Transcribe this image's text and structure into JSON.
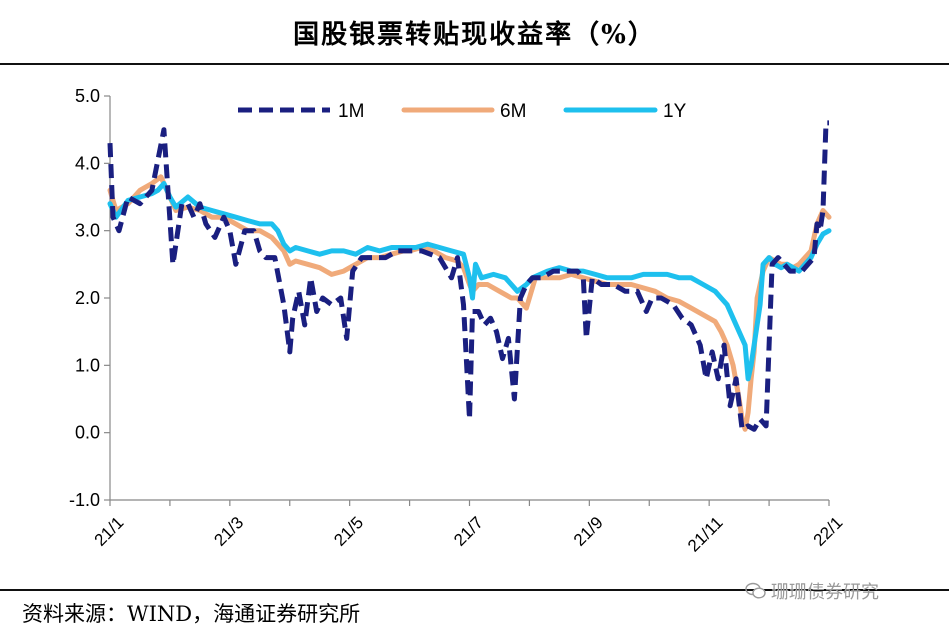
{
  "title": "国股银票转贴现收益率（%）",
  "source": "资料来源：WIND，海通证券研究所",
  "watermark": "珊珊债券研究",
  "colors": {
    "1M": "#1a1f80",
    "6M": "#f0aa7a",
    "1Y": "#1ec0ee",
    "axis": "#888888"
  },
  "chart_data": {
    "type": "line",
    "title": "国股银票转贴现收益率（%）",
    "xlabel": "",
    "ylabel": "",
    "ylim": [
      -1.0,
      5.0
    ],
    "yticks": [
      "5.0",
      "4.0",
      "3.0",
      "2.0",
      "1.0",
      "0.0",
      "-1.0"
    ],
    "ytick_values": [
      5,
      4,
      3,
      2,
      1,
      0,
      -1
    ],
    "xlim": [
      0,
      12
    ],
    "xticks": [
      "21/1",
      "21/3",
      "21/5",
      "21/7",
      "21/9",
      "21/11",
      "22/1"
    ],
    "xtick_values": [
      0,
      2,
      4,
      6,
      8,
      10,
      12
    ],
    "legend_position": "top-center",
    "series": [
      {
        "name": "1M",
        "style": "dashed",
        "x": [
          0,
          0.05,
          0.15,
          0.3,
          0.5,
          0.7,
          0.9,
          1.05,
          1.2,
          1.3,
          1.4,
          1.5,
          1.6,
          1.75,
          1.9,
          2.0,
          2.1,
          2.25,
          2.4,
          2.5,
          2.6,
          2.75,
          2.9,
          3.0,
          3.05,
          3.15,
          3.25,
          3.35,
          3.45,
          3.55,
          3.7,
          3.85,
          3.95,
          4.05,
          4.2,
          4.4,
          4.6,
          4.8,
          5.0,
          5.2,
          5.5,
          5.7,
          5.8,
          5.9,
          6.0,
          6.05,
          6.15,
          6.25,
          6.35,
          6.45,
          6.55,
          6.65,
          6.75,
          6.85,
          6.95,
          7.05,
          7.2,
          7.4,
          7.6,
          7.8,
          7.9,
          7.95,
          8.05,
          8.2,
          8.4,
          8.6,
          8.8,
          8.95,
          9.05,
          9.2,
          9.4,
          9.55,
          9.7,
          9.85,
          9.95,
          10.05,
          10.15,
          10.25,
          10.35,
          10.45,
          10.55,
          10.65,
          10.75,
          10.85,
          10.95,
          11.05,
          11.15,
          11.25,
          11.35,
          11.45,
          11.55,
          11.65,
          11.75,
          11.8,
          11.85,
          11.9,
          11.95,
          12.0
        ],
        "values": [
          4.3,
          3.2,
          3.0,
          3.5,
          3.4,
          3.6,
          4.5,
          2.5,
          3.4,
          3.4,
          3.2,
          3.4,
          3.1,
          2.9,
          3.2,
          3.0,
          2.5,
          3.0,
          3.0,
          2.7,
          2.6,
          2.6,
          1.9,
          1.2,
          1.7,
          2.1,
          1.6,
          2.3,
          1.8,
          2.0,
          1.9,
          2.0,
          1.4,
          2.4,
          2.6,
          2.6,
          2.6,
          2.7,
          2.7,
          2.7,
          2.6,
          2.3,
          2.6,
          1.9,
          0.2,
          1.8,
          1.8,
          1.6,
          1.7,
          1.5,
          1.1,
          1.4,
          0.5,
          2.0,
          2.2,
          2.3,
          2.3,
          2.4,
          2.4,
          2.4,
          2.3,
          1.4,
          2.3,
          2.2,
          2.2,
          2.1,
          2.1,
          1.8,
          2.0,
          2.0,
          1.9,
          1.7,
          1.6,
          1.3,
          0.8,
          1.2,
          0.8,
          1.3,
          0.4,
          0.8,
          0.05,
          0.1,
          0.05,
          0.2,
          0.1,
          2.5,
          2.6,
          2.5,
          2.4,
          2.4,
          2.4,
          2.5,
          2.6,
          3.1,
          3.0,
          3.3,
          4.6,
          4.6
        ]
      },
      {
        "name": "6M",
        "style": "solid",
        "x": [
          0,
          0.1,
          0.3,
          0.5,
          0.7,
          0.85,
          0.95,
          1.1,
          1.3,
          1.5,
          1.7,
          1.9,
          2.1,
          2.3,
          2.5,
          2.7,
          2.8,
          2.9,
          3.0,
          3.1,
          3.3,
          3.5,
          3.7,
          3.9,
          4.1,
          4.3,
          4.5,
          4.7,
          4.9,
          5.0,
          5.2,
          5.4,
          5.6,
          5.8,
          5.9,
          6.0,
          6.05,
          6.15,
          6.3,
          6.5,
          6.7,
          6.8,
          6.9,
          6.95,
          7.1,
          7.3,
          7.5,
          7.7,
          7.9,
          8.1,
          8.3,
          8.5,
          8.7,
          8.9,
          9.1,
          9.3,
          9.5,
          9.7,
          9.9,
          10.0,
          10.1,
          10.2,
          10.3,
          10.4,
          10.5,
          10.55,
          10.6,
          10.65,
          10.7,
          10.75,
          10.8,
          10.9,
          11.0,
          11.1,
          11.2,
          11.3,
          11.4,
          11.5,
          11.6,
          11.7,
          11.8,
          11.9,
          12.0
        ],
        "values": [
          3.6,
          3.3,
          3.4,
          3.6,
          3.7,
          3.8,
          3.6,
          3.3,
          3.35,
          3.3,
          3.2,
          3.2,
          3.1,
          3.0,
          3.0,
          2.9,
          2.8,
          2.7,
          2.5,
          2.55,
          2.5,
          2.45,
          2.35,
          2.4,
          2.5,
          2.6,
          2.6,
          2.65,
          2.7,
          2.7,
          2.75,
          2.7,
          2.6,
          2.55,
          2.45,
          2.2,
          2.1,
          2.2,
          2.2,
          2.1,
          2.0,
          2.0,
          1.9,
          1.85,
          2.3,
          2.3,
          2.3,
          2.35,
          2.3,
          2.25,
          2.2,
          2.2,
          2.2,
          2.15,
          2.1,
          2.0,
          1.95,
          1.85,
          1.75,
          1.7,
          1.65,
          1.5,
          1.3,
          1.0,
          0.5,
          0.2,
          0.05,
          0.3,
          0.8,
          1.2,
          2.0,
          2.4,
          2.6,
          2.55,
          2.5,
          2.5,
          2.45,
          2.5,
          2.6,
          2.7,
          3.1,
          3.3,
          3.2
        ]
      },
      {
        "name": "1Y",
        "style": "solid",
        "x": [
          0,
          0.1,
          0.3,
          0.5,
          0.7,
          0.8,
          0.9,
          1.0,
          1.1,
          1.3,
          1.5,
          1.7,
          1.9,
          2.1,
          2.3,
          2.5,
          2.7,
          2.8,
          2.9,
          3.0,
          3.1,
          3.3,
          3.5,
          3.7,
          3.9,
          4.1,
          4.3,
          4.5,
          4.7,
          4.9,
          5.1,
          5.3,
          5.5,
          5.7,
          5.9,
          6.0,
          6.05,
          6.1,
          6.2,
          6.4,
          6.6,
          6.8,
          6.95,
          7.05,
          7.3,
          7.5,
          7.7,
          7.9,
          8.1,
          8.3,
          8.5,
          8.7,
          8.9,
          9.1,
          9.3,
          9.5,
          9.7,
          9.9,
          10.1,
          10.2,
          10.3,
          10.4,
          10.5,
          10.6,
          10.65,
          10.7,
          10.75,
          10.8,
          10.85,
          10.9,
          11.0,
          11.1,
          11.2,
          11.3,
          11.4,
          11.5,
          11.6,
          11.7,
          11.8,
          11.9,
          12.0
        ],
        "values": [
          3.4,
          3.2,
          3.45,
          3.5,
          3.55,
          3.6,
          3.7,
          3.5,
          3.35,
          3.5,
          3.35,
          3.3,
          3.25,
          3.2,
          3.15,
          3.1,
          3.1,
          3.0,
          2.8,
          2.7,
          2.75,
          2.7,
          2.65,
          2.7,
          2.7,
          2.65,
          2.75,
          2.7,
          2.75,
          2.75,
          2.75,
          2.8,
          2.75,
          2.7,
          2.65,
          2.3,
          2.0,
          2.5,
          2.3,
          2.35,
          2.3,
          2.1,
          2.2,
          2.3,
          2.4,
          2.45,
          2.4,
          2.4,
          2.35,
          2.3,
          2.3,
          2.3,
          2.35,
          2.35,
          2.35,
          2.3,
          2.3,
          2.2,
          2.1,
          2.0,
          1.9,
          1.7,
          1.5,
          1.3,
          0.8,
          1.0,
          1.3,
          1.6,
          1.9,
          2.5,
          2.6,
          2.5,
          2.45,
          2.5,
          2.45,
          2.4,
          2.5,
          2.6,
          2.8,
          2.95,
          3.0
        ]
      }
    ]
  }
}
